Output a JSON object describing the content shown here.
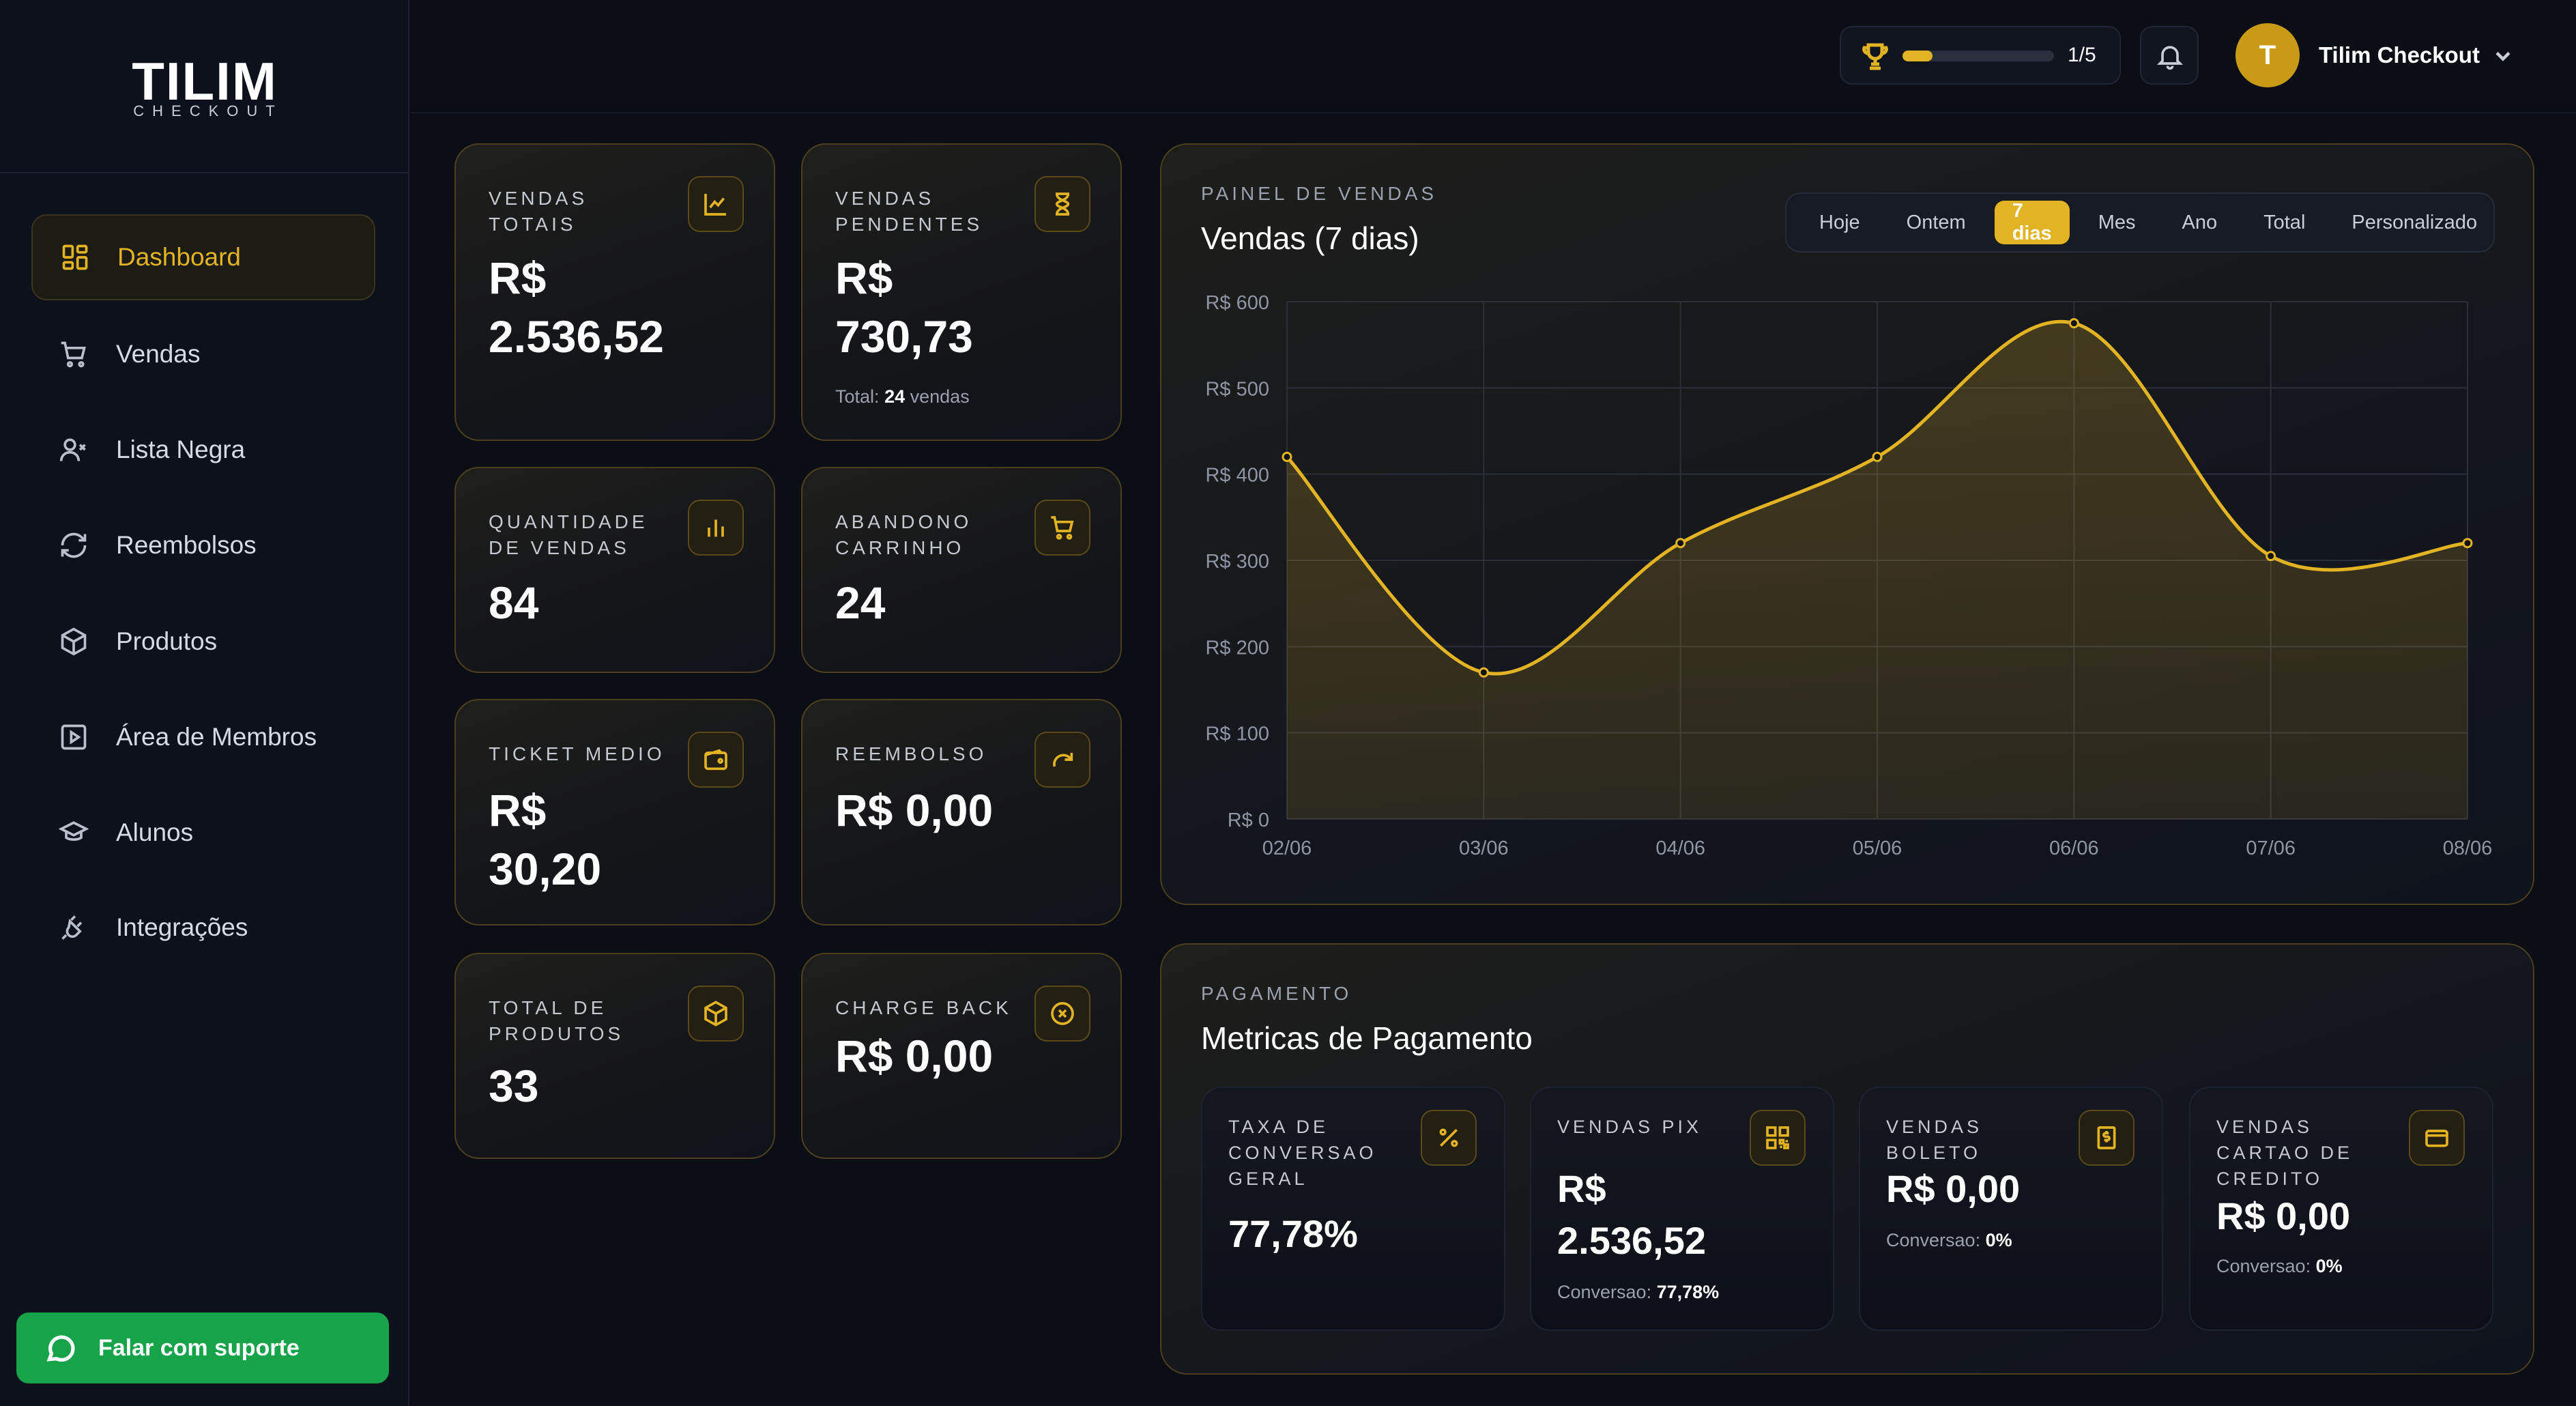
{
  "brand": {
    "name_main": "TILIM",
    "name_sub": "CHECKOUT"
  },
  "sidebar": {
    "items": [
      {
        "label": "Dashboard",
        "icon": "dashboard-icon",
        "active": true
      },
      {
        "label": "Vendas",
        "icon": "cart-icon"
      },
      {
        "label": "Lista Negra",
        "icon": "user-x-icon"
      },
      {
        "label": "Reembolsos",
        "icon": "refresh-icon"
      },
      {
        "label": "Produtos",
        "icon": "box-icon"
      },
      {
        "label": "Área de Membros",
        "icon": "play-square-icon"
      },
      {
        "label": "Alunos",
        "icon": "graduation-cap-icon"
      },
      {
        "label": "Integrações",
        "icon": "plug-icon"
      }
    ],
    "support_label": "Falar com suporte"
  },
  "header": {
    "achievement_progress": 0.2,
    "achievement_text": "1/5",
    "user_initial": "T",
    "user_name": "Tilim Checkout"
  },
  "stats": {
    "vendas_totais": {
      "label": "VENDAS TOTAIS",
      "value_line1": "R$",
      "value_line2": "2.536,52"
    },
    "vendas_pendentes": {
      "label": "VENDAS PENDENTES",
      "value_line1": "R$",
      "value_line2": "730,73",
      "sub_prefix": "Total:",
      "sub_count": "24",
      "sub_suffix": "vendas"
    },
    "quantidade_vendas": {
      "label": "QUANTIDADE DE VENDAS",
      "value": "84"
    },
    "abandono_carrinho": {
      "label": "ABANDONO CARRINHO",
      "value": "24"
    },
    "ticket_medio": {
      "label": "TICKET MEDIO",
      "value_line1": "R$",
      "value_line2": "30,20"
    },
    "reembolso": {
      "label": "REEMBOLSO",
      "value": "R$ 0,00"
    },
    "total_produtos": {
      "label": "TOTAL DE PRODUTOS",
      "value": "33"
    },
    "charge_back": {
      "label": "CHARGE BACK",
      "value": "R$ 0,00"
    }
  },
  "sales_panel": {
    "label": "PAINEL DE VENDAS",
    "title": "Vendas (7 dias)",
    "filters": [
      "Hoje",
      "Ontem",
      "7 dias",
      "Mes",
      "Ano",
      "Total",
      "Personalizado"
    ],
    "active_filter": "7 dias"
  },
  "chart_data": {
    "type": "area",
    "title": "Vendas (7 dias)",
    "x": [
      "02/06",
      "03/06",
      "04/06",
      "05/06",
      "06/06",
      "07/06",
      "08/06"
    ],
    "values": [
      420,
      170,
      320,
      420,
      575,
      305,
      320
    ],
    "ylim": [
      0,
      600
    ],
    "yticks": [
      0,
      100,
      200,
      300,
      400,
      500,
      600
    ],
    "ytick_labels": [
      "R$ 0",
      "R$ 100",
      "R$ 200",
      "R$ 300",
      "R$ 400",
      "R$ 500",
      "R$ 600"
    ],
    "grid": true,
    "color": "#e2b323"
  },
  "payment_panel": {
    "label": "PAGAMENTO",
    "title": "Metricas de Pagamento",
    "cards": [
      {
        "label": "TAXA DE CONVERSAO GERAL",
        "value_line1": "77,78%",
        "value_line2": "",
        "sub_prefix": "",
        "sub_value": ""
      },
      {
        "label": "VENDAS PIX",
        "value_line1": "R$",
        "value_line2": "2.536,52",
        "sub_prefix": "Conversao:",
        "sub_value": "77,78%"
      },
      {
        "label": "VENDAS BOLETO",
        "value_line1": "R$ 0,00",
        "value_line2": "",
        "sub_prefix": "Conversao:",
        "sub_value": "0%"
      },
      {
        "label": "VENDAS CARTAO DE CREDITO",
        "value_line1": "R$ 0,00",
        "value_line2": "",
        "sub_prefix": "Conversao:",
        "sub_value": "0%"
      }
    ]
  },
  "colors": {
    "accent": "#e2b323",
    "support": "#17a34a",
    "background": "#0b0e15"
  }
}
